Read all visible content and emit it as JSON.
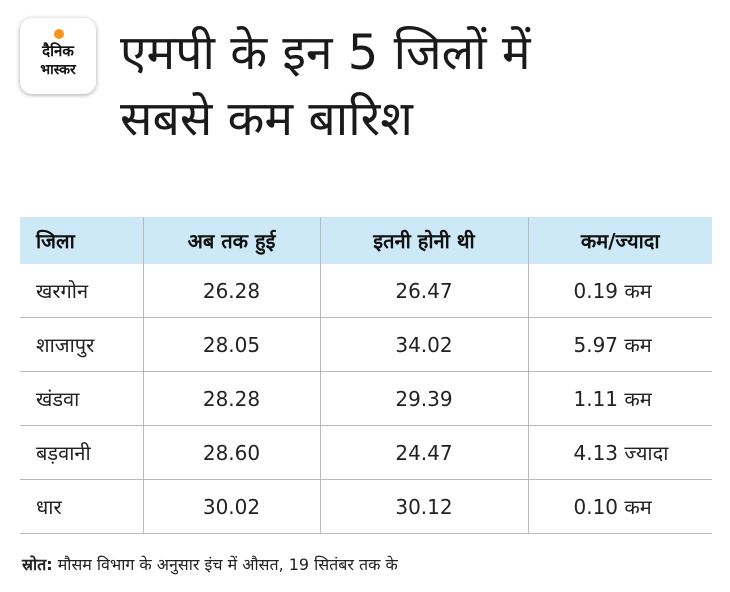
{
  "logo": {
    "line1": "दैनिक",
    "line2": "भास्कर",
    "sun_color": "#f7941d"
  },
  "title": {
    "line1": "एमपी के इन 5 जिलों में",
    "line2": "सबसे कम बारिश"
  },
  "colors": {
    "header_bg": "#cde9f7",
    "divider": "#b9b9b9"
  },
  "chart_data": {
    "type": "table",
    "columns": [
      "जिला",
      "अब तक हुई",
      "इतनी होनी थी",
      "कम/ज्यादा"
    ],
    "rows": [
      {
        "district": "खरगोन",
        "received": "26.28",
        "expected": "26.47",
        "diff": "0.19 कम"
      },
      {
        "district": "शाजापुर",
        "received": "28.05",
        "expected": "34.02",
        "diff": "5.97 कम"
      },
      {
        "district": "खंडवा",
        "received": "28.28",
        "expected": "29.39",
        "diff": "1.11 कम"
      },
      {
        "district": "बड़वानी",
        "received": "28.60",
        "expected": "24.47",
        "diff": "4.13 ज्यादा"
      },
      {
        "district": "धार",
        "received": "30.02",
        "expected": "30.12",
        "diff": "0.10 कम"
      }
    ]
  },
  "source": {
    "label": "स्रोत:",
    "text": " मौसम विभाग के अनुसार इंच में औसत, 19 सितंबर तक के"
  }
}
